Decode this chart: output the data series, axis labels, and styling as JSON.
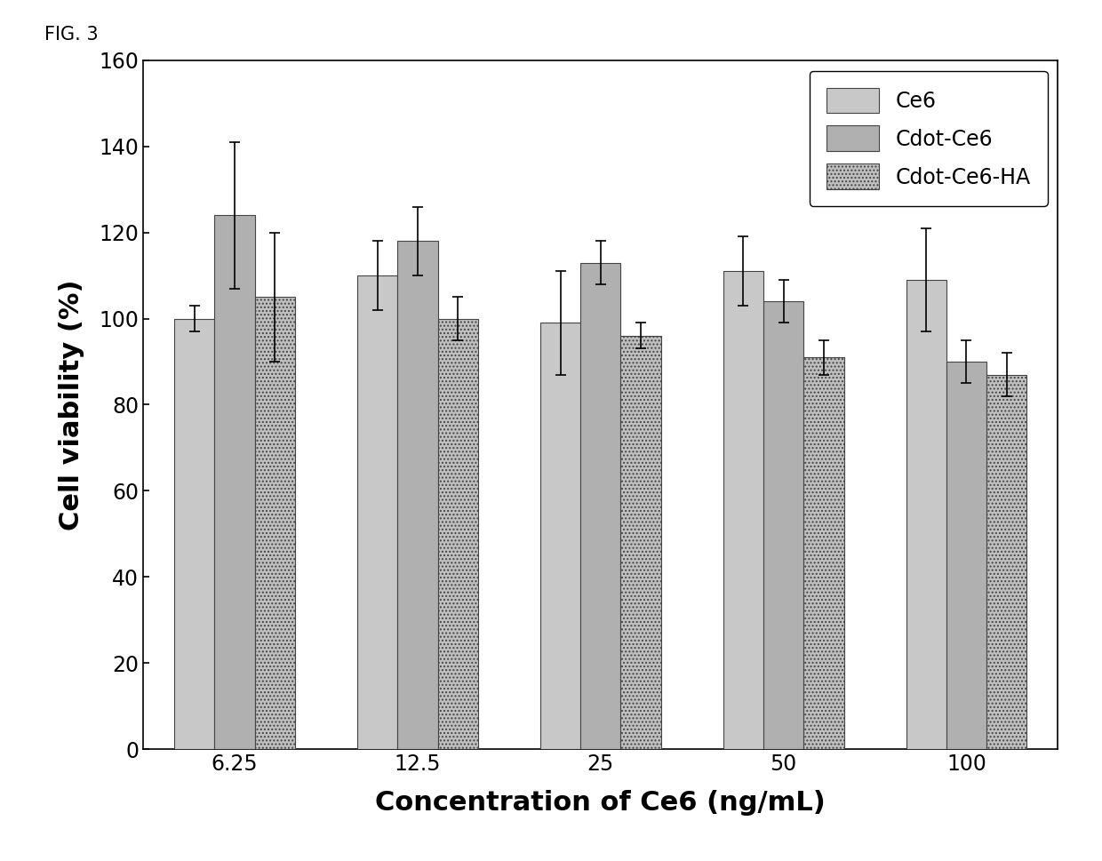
{
  "categories": [
    "6.25",
    "12.5",
    "25",
    "50",
    "100"
  ],
  "series": {
    "Ce6": {
      "values": [
        100,
        110,
        99,
        111,
        109
      ],
      "errors": [
        3,
        8,
        12,
        8,
        12
      ]
    },
    "Cdot-Ce6": {
      "values": [
        124,
        118,
        113,
        104,
        90
      ],
      "errors": [
        17,
        8,
        5,
        5,
        5
      ]
    },
    "Cdot-Ce6-HA": {
      "values": [
        105,
        100,
        96,
        91,
        87
      ],
      "errors": [
        15,
        5,
        3,
        4,
        5
      ]
    }
  },
  "xlabel": "Concentration of Ce6 (ng/mL)",
  "ylabel": "Cell viability (%)",
  "ylim": [
    0,
    160
  ],
  "yticks": [
    0,
    20,
    40,
    60,
    80,
    100,
    120,
    140,
    160
  ],
  "fig_label": "FIG. 3",
  "legend_labels": [
    "Ce6",
    "Cdot-Ce6",
    "Cdot-Ce6-HA"
  ],
  "bar_colors": [
    "#c8c8c8",
    "#b0b0b0",
    "#c0c0c0"
  ],
  "hatch_list": [
    "",
    "",
    "...."
  ],
  "edgecolor": "#444444",
  "bar_width": 0.22,
  "background_color": "#ffffff",
  "plot_bg_color": "#ffffff",
  "xlabel_fontsize": 22,
  "ylabel_fontsize": 22,
  "tick_fontsize": 17,
  "legend_fontsize": 17,
  "fig_label_fontsize": 15
}
